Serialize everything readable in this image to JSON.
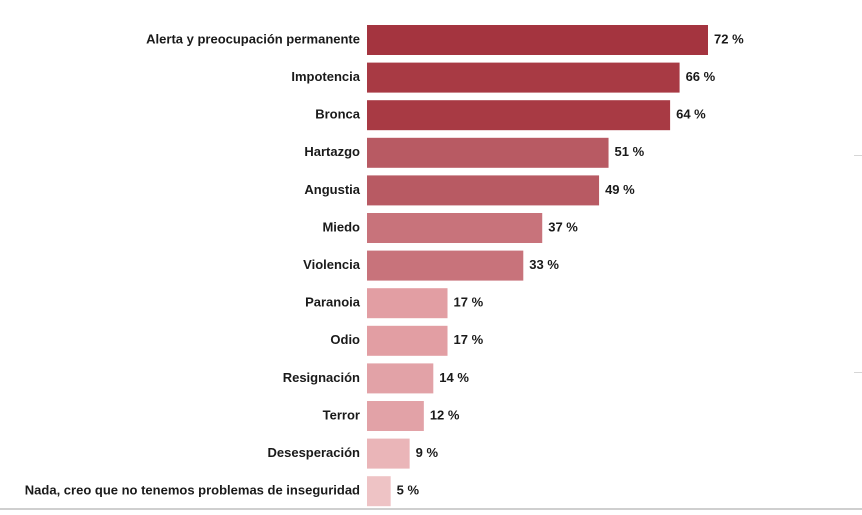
{
  "chart_data": {
    "type": "bar",
    "orientation": "horizontal",
    "title": "",
    "xlabel": "",
    "ylabel": "",
    "xlim": [
      0,
      72
    ],
    "grid": false,
    "value_suffix": " %",
    "categories": [
      "Alerta y preocupación permanente",
      "Impotencia",
      "Bronca",
      "Hartazgo",
      "Angustia",
      "Miedo",
      "Violencia",
      "Paranoia",
      "Odio",
      "Resignación",
      "Terror",
      "Desesperación",
      "Nada, creo que no tenemos problemas de inseguridad"
    ],
    "values": [
      72,
      66,
      64,
      51,
      49,
      37,
      33,
      17,
      17,
      14,
      12,
      9,
      5
    ],
    "colors": [
      "#a4343f",
      "#a83a44",
      "#a83a44",
      "#b85a63",
      "#b85a63",
      "#c8737b",
      "#c8737b",
      "#e29ea3",
      "#e29ea3",
      "#e2a2a7",
      "#e2a2a7",
      "#eab5b8",
      "#eec3c5"
    ]
  }
}
